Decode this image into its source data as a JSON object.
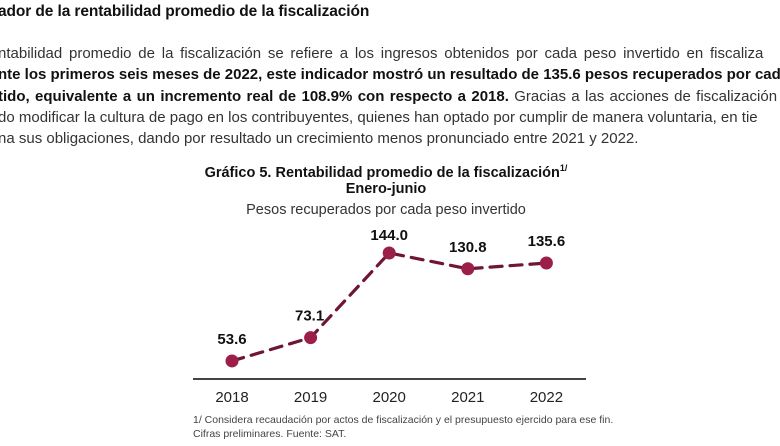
{
  "section": {
    "heading": "ador de la rentabilidad promedio de la fiscalización",
    "paragraph_lines": [
      [
        {
          "t": "ntabilidad promedio de la fiscalización se refiere a los ingresos obtenidos por cada peso invertido en fiscaliza",
          "b": false
        }
      ],
      [
        {
          "t": "nte los primeros seis meses de 2022, este indicador mostró un resultado de 135.6 pesos recuperados por cada",
          "b": true
        }
      ],
      [
        {
          "t": "tido, equivalente a un incremento real de 108.9% con respecto a 2018.",
          "b": true
        },
        {
          "t": " Gracias a las acciones de fiscalización",
          "b": false
        }
      ],
      [
        {
          "t": "do modificar la cultura de pago en los contribuyentes, quienes han optado por cumplir de manera voluntaria, en tie",
          "b": false
        }
      ],
      [
        {
          "t": "na sus obligaciones, dando por resultado un crecimiento menos pronunciado entre 2021 y 2022.",
          "b": false
        }
      ]
    ]
  },
  "chart_data": {
    "type": "line",
    "title": "Gráfico 5. Rentabilidad promedio de la fiscalización",
    "title_superscript": "1/",
    "subtitle": "Enero-junio",
    "ylabel": "Pesos recuperados por cada peso invertido",
    "xlabel": "",
    "categories": [
      "2018",
      "2019",
      "2020",
      "2021",
      "2022"
    ],
    "series": [
      {
        "name": "Rentabilidad promedio",
        "values": [
          53.6,
          73.1,
          144.0,
          130.8,
          135.6
        ],
        "labels": [
          "53.6",
          "73.1",
          "144.0",
          "130.8",
          "135.6"
        ],
        "color": "#9b1f47",
        "line_color": "#6e1539",
        "line_style": "dashed"
      }
    ],
    "ylim": [
      38.5,
      144.0
    ],
    "grid": false,
    "y_axis_visible": false,
    "legend": "none",
    "axis_color": "#444444"
  },
  "footnotes": [
    "1/ Considera recaudación por actos de fiscalización y el presupuesto ejercido para ese fin.",
    "Cifras preliminares. Fuente: SAT."
  ]
}
